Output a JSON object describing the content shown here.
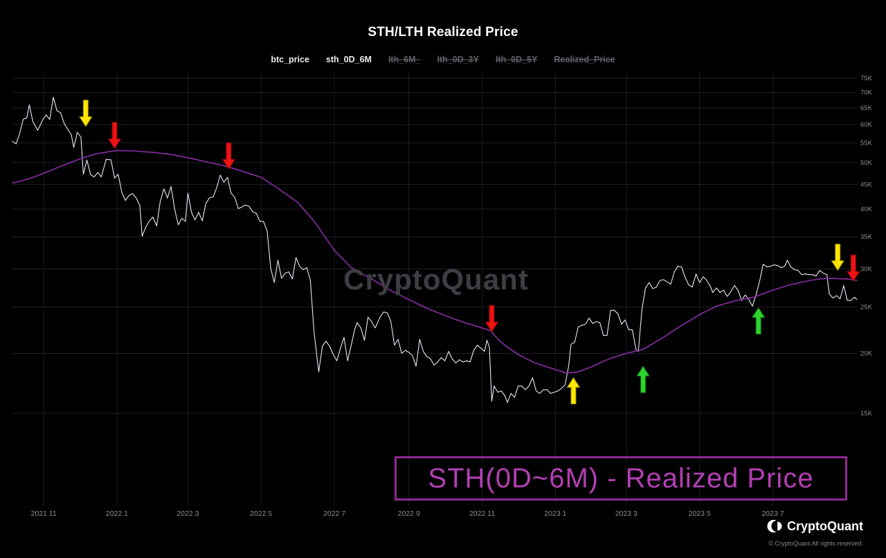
{
  "header": {
    "title": "STH/LTH Realized Price"
  },
  "legend": {
    "items": [
      {
        "label": "btc_price",
        "active": true
      },
      {
        "label": "sth_0D_6M",
        "active": true
      },
      {
        "label": "lth_6M_",
        "active": false
      },
      {
        "label": "lth_0D_3Y",
        "active": false
      },
      {
        "label": "lth_0D_5Y",
        "active": false
      },
      {
        "label": "Realized_Price",
        "active": false
      }
    ]
  },
  "watermark": "CryptoQuant",
  "annotation_box": {
    "text": "STH(0D~6M) - Realized Price",
    "text_color": "#b33fb3",
    "border_color": "#8f2a90"
  },
  "footer": {
    "brand": "CryptoQuant",
    "copyright": "© CryptoQuant All rights reserved."
  },
  "chart_data": {
    "type": "line",
    "title": "STH/LTH Realized Price",
    "xlabel": "",
    "ylabel": "",
    "y_axis": {
      "scale": "log",
      "ticks": [
        "75K",
        "70K",
        "65K",
        "60K",
        "55K",
        "50K",
        "45K",
        "40K",
        "35K",
        "30K",
        "25K",
        "20K",
        "15K"
      ],
      "tick_values": [
        75000,
        70000,
        65000,
        60000,
        55000,
        50000,
        45000,
        40000,
        35000,
        30000,
        25000,
        20000,
        15000
      ]
    },
    "x_axis": {
      "ticks": [
        {
          "label": "2021 11",
          "date": "2021-11-01"
        },
        {
          "label": "2022 1",
          "date": "2022-01-01"
        },
        {
          "label": "2022 3",
          "date": "2022-03-01"
        },
        {
          "label": "2022 5",
          "date": "2022-05-01"
        },
        {
          "label": "2022 7",
          "date": "2022-07-01"
        },
        {
          "label": "2022 9",
          "date": "2022-09-01"
        },
        {
          "label": "2022 11",
          "date": "2022-11-01"
        },
        {
          "label": "2023 1",
          "date": "2023-01-01"
        },
        {
          "label": "2023 3",
          "date": "2023-03-01"
        },
        {
          "label": "2023 5",
          "date": "2023-05-01"
        },
        {
          "label": "2023 7",
          "date": "2023-07-01"
        }
      ]
    },
    "series": [
      {
        "name": "btc_price",
        "color": "#eceaf4",
        "width": 1.1,
        "x": [
          "2021-10-06",
          "2021-10-09",
          "2021-10-12",
          "2021-10-15",
          "2021-10-18",
          "2021-10-20",
          "2021-10-23",
          "2021-10-27",
          "2021-10-31",
          "2021-11-03",
          "2021-11-06",
          "2021-11-09",
          "2021-11-12",
          "2021-11-15",
          "2021-11-18",
          "2021-11-21",
          "2021-11-24",
          "2021-11-26",
          "2021-11-29",
          "2021-12-02",
          "2021-12-04",
          "2021-12-07",
          "2021-12-10",
          "2021-12-13",
          "2021-12-16",
          "2021-12-19",
          "2021-12-23",
          "2021-12-27",
          "2021-12-30",
          "2022-01-02",
          "2022-01-05",
          "2022-01-08",
          "2022-01-11",
          "2022-01-14",
          "2022-01-17",
          "2022-01-20",
          "2022-01-22",
          "2022-01-25",
          "2022-01-28",
          "2022-01-31",
          "2022-02-03",
          "2022-02-06",
          "2022-02-09",
          "2022-02-12",
          "2022-02-15",
          "2022-02-18",
          "2022-02-21",
          "2022-02-24",
          "2022-02-27",
          "2022-03-01",
          "2022-03-04",
          "2022-03-07",
          "2022-03-10",
          "2022-03-13",
          "2022-03-16",
          "2022-03-19",
          "2022-03-22",
          "2022-03-25",
          "2022-03-28",
          "2022-03-31",
          "2022-04-03",
          "2022-04-06",
          "2022-04-09",
          "2022-04-12",
          "2022-04-15",
          "2022-04-18",
          "2022-04-21",
          "2022-04-24",
          "2022-04-27",
          "2022-04-30",
          "2022-05-03",
          "2022-05-06",
          "2022-05-09",
          "2022-05-12",
          "2022-05-15",
          "2022-05-18",
          "2022-05-21",
          "2022-05-24",
          "2022-05-27",
          "2022-05-30",
          "2022-06-02",
          "2022-06-05",
          "2022-06-08",
          "2022-06-11",
          "2022-06-14",
          "2022-06-18",
          "2022-06-21",
          "2022-06-24",
          "2022-06-27",
          "2022-06-30",
          "2022-07-03",
          "2022-07-06",
          "2022-07-09",
          "2022-07-12",
          "2022-07-15",
          "2022-07-18",
          "2022-07-20",
          "2022-07-23",
          "2022-07-26",
          "2022-07-29",
          "2022-08-01",
          "2022-08-04",
          "2022-08-08",
          "2022-08-11",
          "2022-08-14",
          "2022-08-17",
          "2022-08-20",
          "2022-08-23",
          "2022-08-26",
          "2022-08-29",
          "2022-09-01",
          "2022-09-04",
          "2022-09-07",
          "2022-09-10",
          "2022-09-13",
          "2022-09-16",
          "2022-09-19",
          "2022-09-22",
          "2022-09-25",
          "2022-09-28",
          "2022-10-01",
          "2022-10-04",
          "2022-10-07",
          "2022-10-10",
          "2022-10-13",
          "2022-10-16",
          "2022-10-19",
          "2022-10-22",
          "2022-10-25",
          "2022-10-28",
          "2022-10-31",
          "2022-11-03",
          "2022-11-05",
          "2022-11-07",
          "2022-11-09",
          "2022-11-11",
          "2022-11-14",
          "2022-11-17",
          "2022-11-20",
          "2022-11-22",
          "2022-11-25",
          "2022-11-28",
          "2022-12-01",
          "2022-12-04",
          "2022-12-07",
          "2022-12-10",
          "2022-12-13",
          "2022-12-16",
          "2022-12-19",
          "2022-12-22",
          "2022-12-25",
          "2022-12-28",
          "2022-12-31",
          "2023-01-03",
          "2023-01-06",
          "2023-01-09",
          "2023-01-12",
          "2023-01-14",
          "2023-01-17",
          "2023-01-20",
          "2023-01-23",
          "2023-01-26",
          "2023-01-29",
          "2023-02-01",
          "2023-02-04",
          "2023-02-07",
          "2023-02-10",
          "2023-02-13",
          "2023-02-16",
          "2023-02-19",
          "2023-02-22",
          "2023-02-25",
          "2023-02-28",
          "2023-03-03",
          "2023-03-06",
          "2023-03-09",
          "2023-03-11",
          "2023-03-14",
          "2023-03-17",
          "2023-03-20",
          "2023-03-23",
          "2023-03-26",
          "2023-03-29",
          "2023-04-01",
          "2023-04-04",
          "2023-04-07",
          "2023-04-10",
          "2023-04-13",
          "2023-04-16",
          "2023-04-19",
          "2023-04-22",
          "2023-04-25",
          "2023-04-28",
          "2023-05-01",
          "2023-05-04",
          "2023-05-07",
          "2023-05-10",
          "2023-05-12",
          "2023-05-15",
          "2023-05-18",
          "2023-05-21",
          "2023-05-24",
          "2023-05-27",
          "2023-05-30",
          "2023-06-02",
          "2023-06-05",
          "2023-06-08",
          "2023-06-11",
          "2023-06-14",
          "2023-06-17",
          "2023-06-20",
          "2023-06-23",
          "2023-06-26",
          "2023-06-29",
          "2023-07-02",
          "2023-07-05",
          "2023-07-08",
          "2023-07-11",
          "2023-07-13",
          "2023-07-16",
          "2023-07-19",
          "2023-07-22",
          "2023-07-25",
          "2023-07-28",
          "2023-07-31",
          "2023-08-03",
          "2023-08-06",
          "2023-08-09",
          "2023-08-12",
          "2023-08-15",
          "2023-08-17",
          "2023-08-20",
          "2023-08-23",
          "2023-08-26",
          "2023-08-29",
          "2023-09-01",
          "2023-09-04",
          "2023-09-07",
          "2023-09-09"
        ],
        "values": [
          55400,
          54700,
          57500,
          61600,
          62000,
          66000,
          60900,
          58400,
          61300,
          62900,
          61500,
          68500,
          64200,
          63600,
          60400,
          58700,
          57200,
          53800,
          57800,
          56500,
          47300,
          50600,
          47200,
          46700,
          47700,
          46700,
          50800,
          50700,
          46400,
          47300,
          43400,
          41700,
          42700,
          43100,
          42200,
          40700,
          35100,
          36700,
          37800,
          38500,
          36900,
          41500,
          44100,
          42200,
          44600,
          40000,
          37100,
          38300,
          37700,
          43200,
          39400,
          38000,
          39400,
          37800,
          41100,
          42200,
          42400,
          44300,
          47100,
          45500,
          46600,
          43200,
          42300,
          40100,
          40400,
          40800,
          40500,
          39500,
          39200,
          37700,
          37700,
          36000,
          30100,
          28100,
          31300,
          28700,
          29400,
          29600,
          28600,
          31700,
          30400,
          29900,
          30200,
          28400,
          22200,
          18300,
          20700,
          21200,
          20700,
          19900,
          19300,
          20500,
          21600,
          19300,
          20800,
          22500,
          23200,
          22600,
          21300,
          23800,
          23300,
          22600,
          23800,
          24400,
          24300,
          23300,
          20800,
          21400,
          20000,
          20300,
          20100,
          19800,
          18800,
          21400,
          20200,
          19700,
          19500,
          18900,
          19200,
          19600,
          19300,
          20200,
          19500,
          19100,
          19400,
          19200,
          19300,
          19200,
          20300,
          20800,
          20500,
          20200,
          21300,
          20600,
          15900,
          17100,
          16600,
          16700,
          16300,
          15800,
          16500,
          16200,
          17100,
          17100,
          16800,
          17100,
          17800,
          16700,
          16500,
          16800,
          16800,
          16500,
          16600,
          16700,
          16900,
          17200,
          18800,
          20900,
          21100,
          22700,
          22900,
          23000,
          23700,
          23100,
          23300,
          23200,
          21800,
          21800,
          24600,
          24600,
          24200,
          23000,
          23500,
          22400,
          22400,
          20400,
          20200,
          24700,
          27400,
          28100,
          27300,
          27500,
          28400,
          28500,
          28200,
          27900,
          29600,
          30400,
          30300,
          28800,
          27800,
          27500,
          29300,
          28100,
          28900,
          28400,
          27600,
          26800,
          27400,
          26800,
          27100,
          26300,
          26900,
          27700,
          27100,
          25800,
          26500,
          25900,
          25100,
          26500,
          28300,
          30700,
          30300,
          30400,
          30600,
          30500,
          30200,
          30400,
          31300,
          30300,
          29900,
          29800,
          29200,
          29300,
          29200,
          29200,
          29000,
          29800,
          29400,
          29200,
          26600,
          26100,
          26400,
          26000,
          27700,
          25800,
          25800,
          26200,
          25900
        ]
      },
      {
        "name": "sth_0D_6M",
        "color": "#8b2da6",
        "width": 1.6,
        "x": [
          "2021-10-06",
          "2021-10-20",
          "2021-11-01",
          "2021-11-15",
          "2021-12-01",
          "2021-12-15",
          "2022-01-01",
          "2022-01-15",
          "2022-02-01",
          "2022-02-15",
          "2022-03-01",
          "2022-03-15",
          "2022-04-01",
          "2022-04-15",
          "2022-05-01",
          "2022-05-15",
          "2022-06-01",
          "2022-06-15",
          "2022-07-01",
          "2022-07-15",
          "2022-08-01",
          "2022-08-15",
          "2022-09-01",
          "2022-09-15",
          "2022-10-01",
          "2022-10-15",
          "2022-11-01",
          "2022-11-08",
          "2022-11-15",
          "2022-11-22",
          "2022-12-01",
          "2022-12-15",
          "2023-01-01",
          "2023-01-10",
          "2023-01-20",
          "2023-02-01",
          "2023-02-15",
          "2023-03-01",
          "2023-03-15",
          "2023-04-01",
          "2023-04-15",
          "2023-05-01",
          "2023-05-15",
          "2023-06-01",
          "2023-06-15",
          "2023-07-01",
          "2023-07-15",
          "2023-08-01",
          "2023-08-15",
          "2023-09-01",
          "2023-09-09"
        ],
        "values": [
          45300,
          46300,
          47500,
          49100,
          50900,
          52200,
          53000,
          52900,
          52500,
          52000,
          51200,
          50300,
          49200,
          48000,
          46600,
          44200,
          41200,
          37500,
          32800,
          30200,
          28600,
          27200,
          25900,
          24900,
          24000,
          23300,
          22600,
          22300,
          21300,
          20600,
          19900,
          19100,
          18500,
          18200,
          18300,
          18800,
          19500,
          20000,
          20400,
          21600,
          22800,
          24100,
          25100,
          25800,
          26200,
          27100,
          27800,
          28400,
          28700,
          28600,
          28400
        ]
      }
    ],
    "annotations": {
      "arrows": [
        {
          "date": "2021-12-06",
          "value": 59500,
          "dir": "down",
          "color": "#ffe600",
          "edge": "#9a8a00"
        },
        {
          "date": "2021-12-30",
          "value": 53500,
          "dir": "down",
          "color": "#ee1212",
          "edge": "#7e0808"
        },
        {
          "date": "2022-04-04",
          "value": 48500,
          "dir": "down",
          "color": "#ee1212",
          "edge": "#7e0808"
        },
        {
          "date": "2022-11-09",
          "value": 22200,
          "dir": "down",
          "color": "#ee1212",
          "edge": "#7e0808"
        },
        {
          "date": "2023-01-16",
          "value": 17800,
          "dir": "up",
          "color": "#ffe600",
          "edge": "#9a8a00"
        },
        {
          "date": "2023-03-15",
          "value": 18800,
          "dir": "up",
          "color": "#2fd32f",
          "edge": "#0c7a0c"
        },
        {
          "date": "2023-06-19",
          "value": 24900,
          "dir": "up",
          "color": "#2fd32f",
          "edge": "#0c7a0c"
        },
        {
          "date": "2023-08-24",
          "value": 29800,
          "dir": "down",
          "color": "#ffe600",
          "edge": "#9a8a00"
        },
        {
          "date": "2023-09-06",
          "value": 28300,
          "dir": "down",
          "color": "#ee1212",
          "edge": "#7e0808"
        }
      ]
    }
  }
}
